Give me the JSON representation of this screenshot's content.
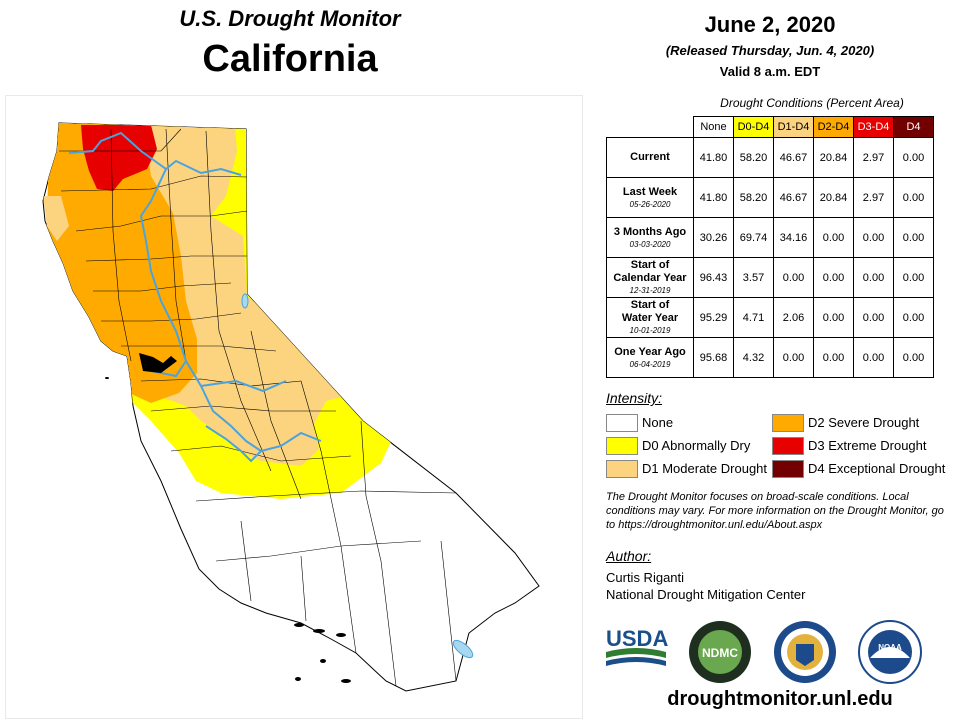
{
  "header": {
    "title_top": "U.S. Drought Monitor",
    "title_main": "California",
    "date": "June 2, 2020",
    "released": "(Released Thursday, Jun. 4, 2020)",
    "valid": "Valid 8 a.m. EDT"
  },
  "conditions": {
    "caption": "Drought Conditions (Percent Area)",
    "columns": [
      {
        "label": "None",
        "color": "#ffffff",
        "text_color": "#000000"
      },
      {
        "label": "D0-D4",
        "color": "#ffff00",
        "text_color": "#000000"
      },
      {
        "label": "D1-D4",
        "color": "#fcd37f",
        "text_color": "#000000"
      },
      {
        "label": "D2-D4",
        "color": "#ffaa00",
        "text_color": "#000000"
      },
      {
        "label": "D3-D4",
        "color": "#e60000",
        "text_color": "#ffffff"
      },
      {
        "label": "D4",
        "color": "#730000",
        "text_color": "#ffffff"
      }
    ],
    "rows": [
      {
        "label_lines": [
          "Current"
        ],
        "date": "",
        "values": [
          "41.80",
          "58.20",
          "46.67",
          "20.84",
          "2.97",
          "0.00"
        ]
      },
      {
        "label_lines": [
          "Last Week"
        ],
        "date": "05-26-2020",
        "values": [
          "41.80",
          "58.20",
          "46.67",
          "20.84",
          "2.97",
          "0.00"
        ]
      },
      {
        "label_lines": [
          "3 Months Ago"
        ],
        "date": "03-03-2020",
        "values": [
          "30.26",
          "69.74",
          "34.16",
          "0.00",
          "0.00",
          "0.00"
        ]
      },
      {
        "label_lines": [
          "Start of",
          "Calendar Year"
        ],
        "date": "12-31-2019",
        "values": [
          "96.43",
          "3.57",
          "0.00",
          "0.00",
          "0.00",
          "0.00"
        ]
      },
      {
        "label_lines": [
          "Start of",
          "Water Year"
        ],
        "date": "10-01-2019",
        "values": [
          "95.29",
          "4.71",
          "2.06",
          "0.00",
          "0.00",
          "0.00"
        ]
      },
      {
        "label_lines": [
          "One Year Ago"
        ],
        "date": "06-04-2019",
        "values": [
          "95.68",
          "4.32",
          "0.00",
          "0.00",
          "0.00",
          "0.00"
        ]
      }
    ]
  },
  "intensity": {
    "title": "Intensity:",
    "items": [
      {
        "label": "None",
        "color": "#ffffff"
      },
      {
        "label": "D0 Abnormally Dry",
        "color": "#ffff00"
      },
      {
        "label": "D1 Moderate Drought",
        "color": "#fcd37f"
      },
      {
        "label": "D2 Severe Drought",
        "color": "#ffaa00"
      },
      {
        "label": "D3 Extreme Drought",
        "color": "#e60000"
      },
      {
        "label": "D4 Exceptional Drought",
        "color": "#730000"
      }
    ]
  },
  "note": "The Drought Monitor focuses on broad-scale conditions. Local conditions may vary. For more information on the Drought Monitor, go to https://droughtmonitor.unl.edu/About.aspx",
  "author": {
    "title": "Author:",
    "name": "Curtis Riganti",
    "org": "National Drought Mitigation Center"
  },
  "logos": {
    "usda": "USDA",
    "ndmc": "NDMC",
    "noaa": "NOAA",
    "icons": [
      "usda-logo-icon",
      "ndmc-seal-icon",
      "commerce-seal-icon",
      "noaa-logo-icon"
    ]
  },
  "website": "droughtmonitor.unl.edu",
  "map_colors": {
    "none": "#ffffff",
    "d0": "#ffff00",
    "d1": "#fcd37f",
    "d2": "#ffaa00",
    "d3": "#e60000",
    "d4": "#730000",
    "water": "#4aa3df",
    "lake": "#a6d8f0",
    "border": "#000000"
  }
}
